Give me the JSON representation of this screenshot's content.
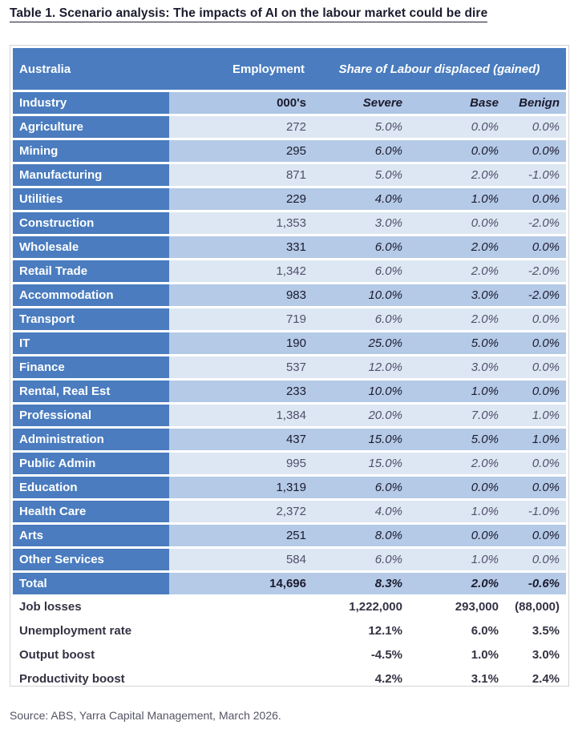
{
  "title": "Table 1. Scenario analysis: The impacts of AI on the labour market could be dire",
  "header": {
    "region": "Australia",
    "employment": "Employment",
    "share": "Share of Labour displaced (gained)"
  },
  "columns": {
    "industry": "Industry",
    "thousands": "000's",
    "severe": "Severe",
    "base": "Base",
    "benign": "Benign"
  },
  "rows": [
    {
      "industry": "Agriculture",
      "emp": "272",
      "severe": "5.0%",
      "base": "0.0%",
      "benign": "0.0%"
    },
    {
      "industry": "Mining",
      "emp": "295",
      "severe": "6.0%",
      "base": "0.0%",
      "benign": "0.0%"
    },
    {
      "industry": "Manufacturing",
      "emp": "871",
      "severe": "5.0%",
      "base": "2.0%",
      "benign": "-1.0%"
    },
    {
      "industry": "Utilities",
      "emp": "229",
      "severe": "4.0%",
      "base": "1.0%",
      "benign": "0.0%"
    },
    {
      "industry": "Construction",
      "emp": "1,353",
      "severe": "3.0%",
      "base": "0.0%",
      "benign": "-2.0%"
    },
    {
      "industry": "Wholesale",
      "emp": "331",
      "severe": "6.0%",
      "base": "2.0%",
      "benign": "0.0%"
    },
    {
      "industry": "Retail Trade",
      "emp": "1,342",
      "severe": "6.0%",
      "base": "2.0%",
      "benign": "-2.0%"
    },
    {
      "industry": "Accommodation",
      "emp": "983",
      "severe": "10.0%",
      "base": "3.0%",
      "benign": "-2.0%"
    },
    {
      "industry": "Transport",
      "emp": "719",
      "severe": "6.0%",
      "base": "2.0%",
      "benign": "0.0%"
    },
    {
      "industry": "IT",
      "emp": "190",
      "severe": "25.0%",
      "base": "5.0%",
      "benign": "0.0%"
    },
    {
      "industry": "Finance",
      "emp": "537",
      "severe": "12.0%",
      "base": "3.0%",
      "benign": "0.0%"
    },
    {
      "industry": "Rental, Real Est",
      "emp": "233",
      "severe": "10.0%",
      "base": "1.0%",
      "benign": "0.0%"
    },
    {
      "industry": "Professional",
      "emp": "1,384",
      "severe": "20.0%",
      "base": "7.0%",
      "benign": "1.0%"
    },
    {
      "industry": "Administration",
      "emp": "437",
      "severe": "15.0%",
      "base": "5.0%",
      "benign": "1.0%"
    },
    {
      "industry": "Public Admin",
      "emp": "995",
      "severe": "15.0%",
      "base": "2.0%",
      "benign": "0.0%"
    },
    {
      "industry": "Education",
      "emp": "1,319",
      "severe": "6.0%",
      "base": "0.0%",
      "benign": "0.0%"
    },
    {
      "industry": "Health Care",
      "emp": "2,372",
      "severe": "4.0%",
      "base": "1.0%",
      "benign": "-1.0%"
    },
    {
      "industry": "Arts",
      "emp": "251",
      "severe": "8.0%",
      "base": "0.0%",
      "benign": "0.0%"
    },
    {
      "industry": "Other Services",
      "emp": "584",
      "severe": "6.0%",
      "base": "1.0%",
      "benign": "0.0%"
    }
  ],
  "total": {
    "industry": "Total",
    "emp": "14,696",
    "severe": "8.3%",
    "base": "2.0%",
    "benign": "-0.6%"
  },
  "summary": [
    {
      "label": "Job losses",
      "severe": "1,222,000",
      "base": "293,000",
      "benign": "(88,000)"
    },
    {
      "label": "Unemployment rate",
      "severe": "12.1%",
      "base": "6.0%",
      "benign": "3.5%"
    },
    {
      "label": "Output boost",
      "severe": "-4.5%",
      "base": "1.0%",
      "benign": "3.0%"
    },
    {
      "label": "Productivity boost",
      "severe": "4.2%",
      "base": "3.1%",
      "benign": "2.4%"
    }
  ],
  "source": "Source: ABS, Yarra Capital Management, March 2026.",
  "colors": {
    "header_blue": "#4a7cbf",
    "row_light": "#dde7f3",
    "row_dark": "#b5cae7"
  }
}
